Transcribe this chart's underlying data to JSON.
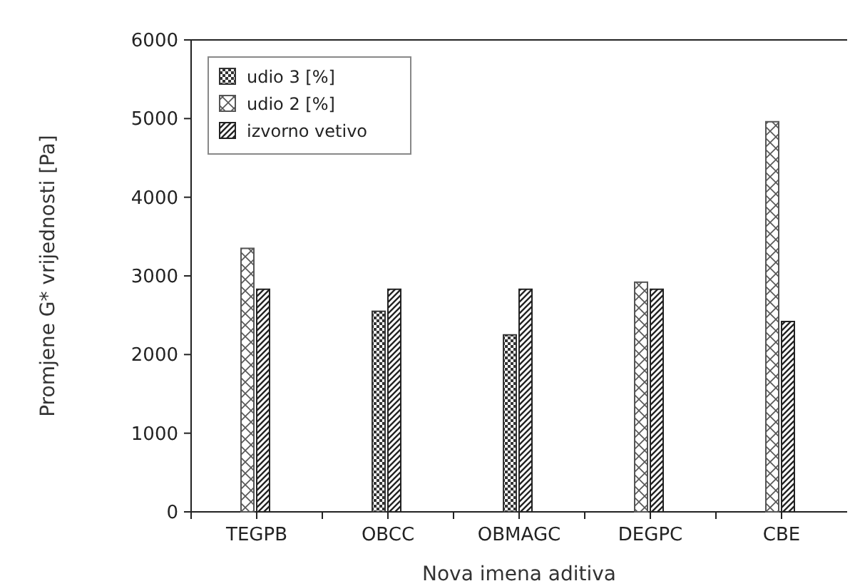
{
  "chart_data": {
    "type": "bar",
    "xlabel": "Nova imena aditiva",
    "ylabel": "Promjene G* vrijednosti [Pa]",
    "categories": [
      "TEGPB",
      "OBCC",
      "OBMAGC",
      "DEGPC",
      "CBE"
    ],
    "series": [
      {
        "name": "udio 3 [%]",
        "color": "#333333",
        "values": [
          null,
          2550,
          2250,
          null,
          null
        ]
      },
      {
        "name": "udio 2 [%]",
        "color": "#555555",
        "values": [
          3350,
          null,
          null,
          2920,
          4960
        ]
      },
      {
        "name": "izvorno vetivo",
        "color": "#222222",
        "values": [
          2830,
          2830,
          2830,
          2830,
          2420
        ]
      }
    ],
    "ylim": [
      0,
      6000
    ],
    "yticks": [
      0,
      1000,
      2000,
      3000,
      4000,
      5000,
      6000
    ],
    "grid": false,
    "legend": "top left"
  }
}
